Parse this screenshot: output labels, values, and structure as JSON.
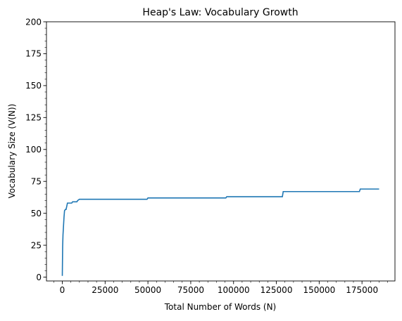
{
  "chart_data": {
    "type": "line",
    "title": "Heap's Law: Vocabulary Growth",
    "xlabel": "Total Number of Words (N)",
    "ylabel": "Vocabulary Size (V(N))",
    "xlim": [
      -9250,
      194250
    ],
    "ylim": [
      -3,
      200
    ],
    "x_ticks": [
      0,
      25000,
      50000,
      75000,
      100000,
      125000,
      150000,
      175000
    ],
    "x_tick_labels": [
      "0",
      "25000",
      "50000",
      "75000",
      "100000",
      "125000",
      "150000",
      "175000"
    ],
    "y_ticks": [
      0,
      25,
      50,
      75,
      100,
      125,
      150,
      175,
      200
    ],
    "y_tick_labels": [
      "0",
      "25",
      "50",
      "75",
      "100",
      "125",
      "150",
      "175",
      "200"
    ],
    "grid": false,
    "legend": false,
    "series": [
      {
        "color": "#1f77b4",
        "x": [
          1,
          200,
          400,
          700,
          1000,
          1300,
          1800,
          2200,
          3000,
          5500,
          6000,
          8500,
          9000,
          10000,
          49500,
          50000,
          95500,
          96000,
          128500,
          129000,
          173500,
          174000,
          185000
        ],
        "y": [
          1,
          24,
          33,
          40,
          47,
          52,
          53,
          53,
          58,
          58,
          59,
          59,
          60,
          61,
          61,
          62,
          62,
          63,
          63,
          67,
          67,
          69,
          69
        ]
      }
    ]
  }
}
